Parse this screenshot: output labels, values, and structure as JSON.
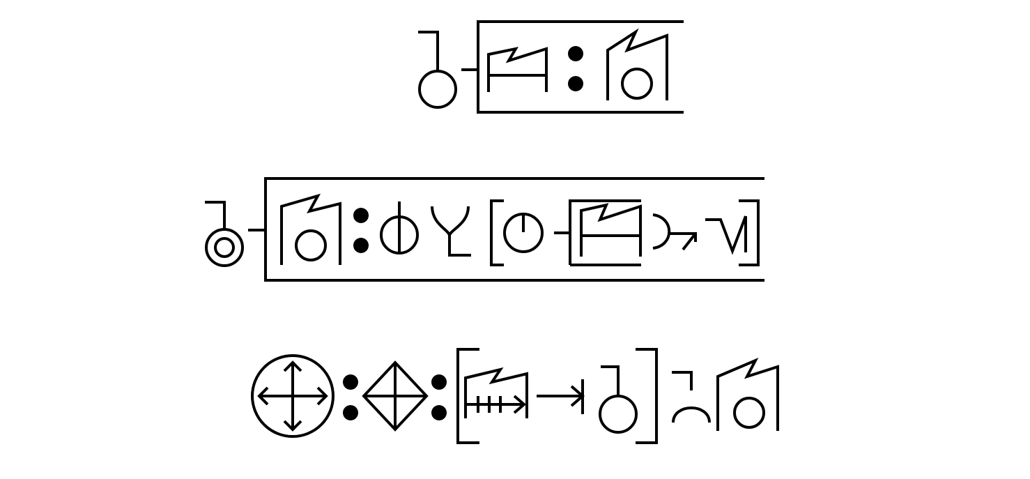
{
  "diagram": {
    "background_color": "#ffffff",
    "ink_color": "#000000",
    "rows": [
      {
        "name": "row-1",
        "glyphs": [
          "hook-circle-glyph",
          "connector",
          "flag-frame-glyph",
          "colon-separator",
          "flag-circle-glyph"
        ],
        "enclosure": "open-right-box"
      },
      {
        "name": "row-2",
        "glyphs": [
          "hook-double-circle-glyph",
          "connector",
          "flag-circle-glyph",
          "colon-separator",
          "circle-vertical-bar-glyph",
          "fork-hook-glyph",
          "bracket-open",
          "circle-tick-glyph",
          "connector",
          "flag-frame-glyph",
          "arc-arrow-glyph",
          "v-bar-glyph",
          "bracket-close"
        ],
        "enclosure": "open-right-box"
      },
      {
        "name": "row-3",
        "glyphs": [
          "circle-four-arrows-glyph",
          "colon-separator",
          "diamond-cross-glyph",
          "colon-separator",
          "bracket-open",
          "flag-arrow-ticks-glyph",
          "arrow-bar-glyph",
          "hook-circle-glyph",
          "bracket-close",
          "arch-hook-glyph",
          "flag-circle-glyph"
        ],
        "enclosure": "none"
      }
    ]
  }
}
